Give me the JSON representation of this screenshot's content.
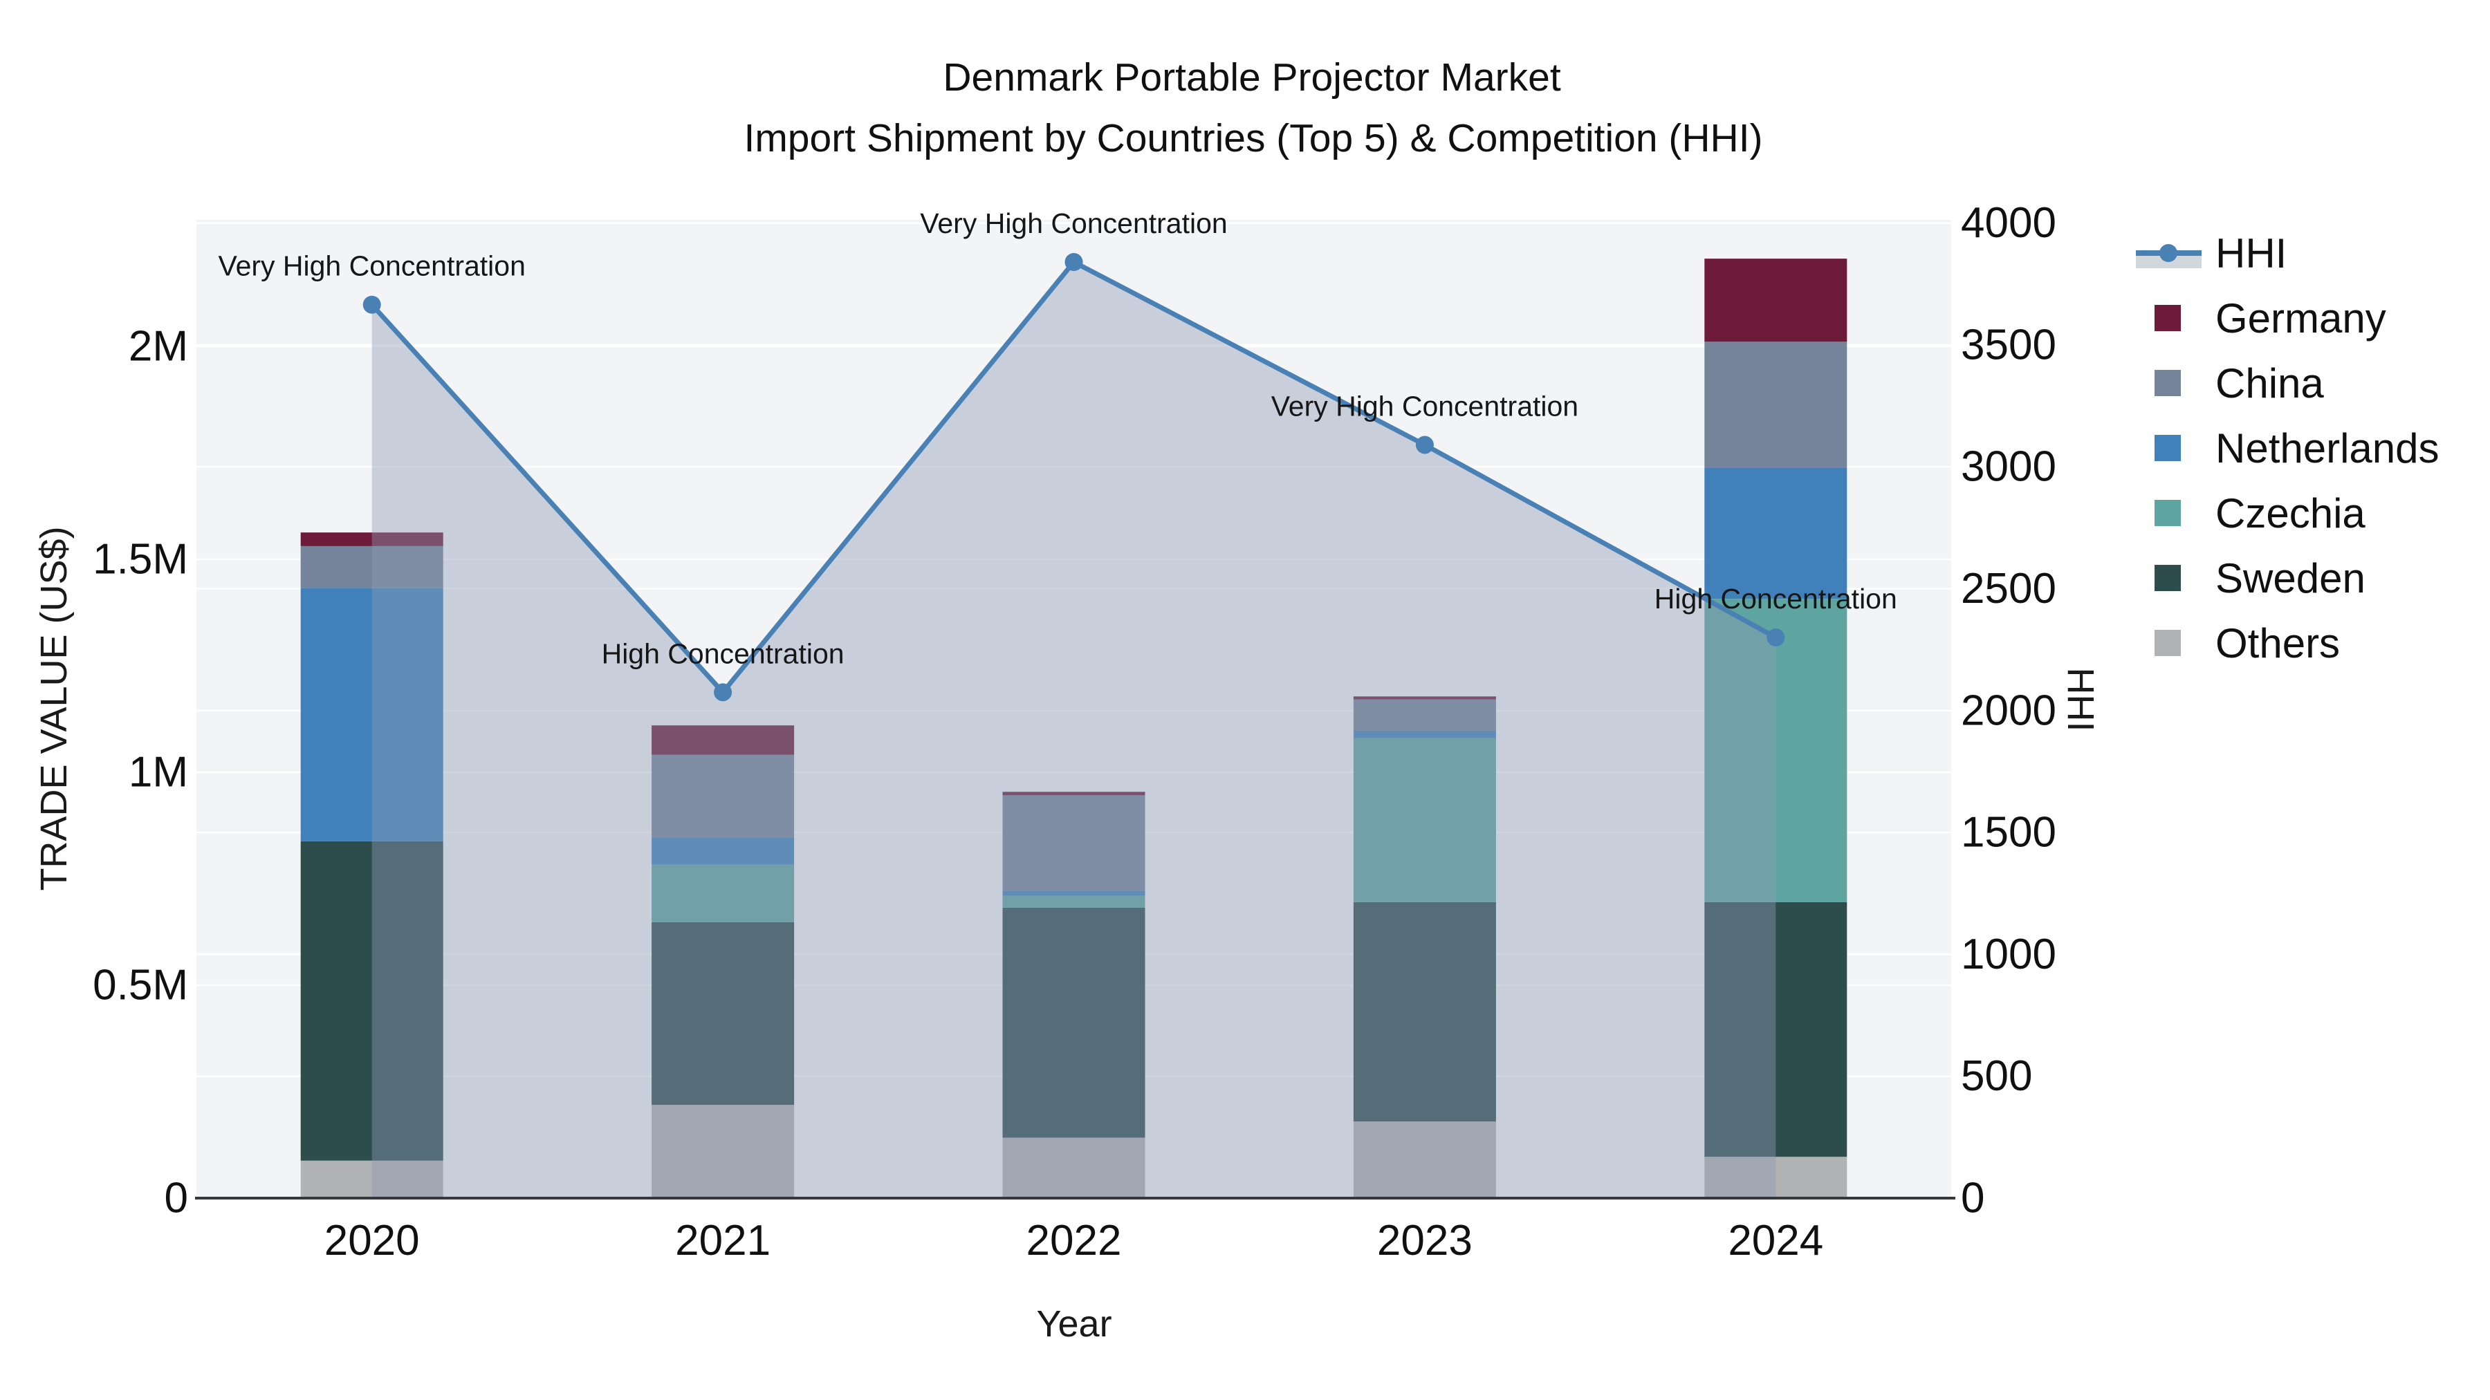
{
  "title": {
    "line1": "Denmark Portable Projector Market",
    "line2": "Import Shipment by Countries (Top 5) & Competition (HHI)"
  },
  "chart_data": {
    "type": "bar",
    "stacked": true,
    "orientation": "vertical",
    "title": "Denmark Portable Projector Market — Import Shipment by Countries (Top 5) & Competition (HHI)",
    "xlabel": "Year",
    "ylabel_left": "TRADE VALUE (US$)",
    "ylabel_right": "HHI",
    "categories": [
      "2020",
      "2021",
      "2022",
      "2023",
      "2024"
    ],
    "series": [
      {
        "name": "Others",
        "color": "#b0b2b4",
        "values": [
          88000,
          219000,
          142000,
          180000,
          97000
        ]
      },
      {
        "name": "Sweden",
        "color": "#2d4d4d",
        "values": [
          750000,
          429000,
          540000,
          515000,
          598000
        ]
      },
      {
        "name": "Czechia",
        "color": "#5ea4a0",
        "values": [
          0,
          135000,
          28000,
          385000,
          712000
        ]
      },
      {
        "name": "Netherlands",
        "color": "#4181bb",
        "values": [
          595000,
          64000,
          12000,
          18000,
          308000
        ]
      },
      {
        "name": "China",
        "color": "#75849a",
        "values": [
          98000,
          194000,
          224000,
          73000,
          296000
        ]
      },
      {
        "name": "Germany",
        "color": "#6e1b3a",
        "values": [
          32000,
          69000,
          8000,
          7000,
          195000
        ]
      }
    ],
    "line_series": {
      "name": "HHI",
      "axis": "right",
      "color": "#4a81b5",
      "fill_color": "rgba(140,155,180,0.42)",
      "values": [
        3665,
        2075,
        3840,
        3090,
        2300
      ]
    },
    "annotations": [
      {
        "category": "2020",
        "text": "Very High Concentration"
      },
      {
        "category": "2021",
        "text": "High Concentration"
      },
      {
        "category": "2022",
        "text": "Very High Concentration"
      },
      {
        "category": "2023",
        "text": "Very High Concentration"
      },
      {
        "category": "2024",
        "text": "High Concentration"
      }
    ],
    "yticks_left": [
      {
        "label": "0",
        "value": 0
      },
      {
        "label": "0.5M",
        "value": 500000
      },
      {
        "label": "1M",
        "value": 1000000
      },
      {
        "label": "1.5M",
        "value": 1500000
      },
      {
        "label": "2M",
        "value": 2000000
      }
    ],
    "yticks_right": [
      {
        "label": "0",
        "value": 0
      },
      {
        "label": "500",
        "value": 500
      },
      {
        "label": "1000",
        "value": 1000
      },
      {
        "label": "1500",
        "value": 1500
      },
      {
        "label": "2000",
        "value": 2000
      },
      {
        "label": "2500",
        "value": 2500
      },
      {
        "label": "3000",
        "value": 3000
      },
      {
        "label": "3500",
        "value": 3500
      },
      {
        "label": "4000",
        "value": 4000
      }
    ],
    "ylim_left": [
      0,
      2300000
    ],
    "ylim_right": [
      0,
      4013
    ],
    "legend_position": "right",
    "grid": true,
    "colors": {
      "plot_background": "#f3f4f5",
      "gridline": "#ffffff",
      "axis_line": "#36383a",
      "text": "#101010",
      "hhi_line": "#4a81b5",
      "hhi_fill": "rgba(140,155,180,0.42)",
      "legend_fill_band": "#d2d6dd"
    }
  }
}
